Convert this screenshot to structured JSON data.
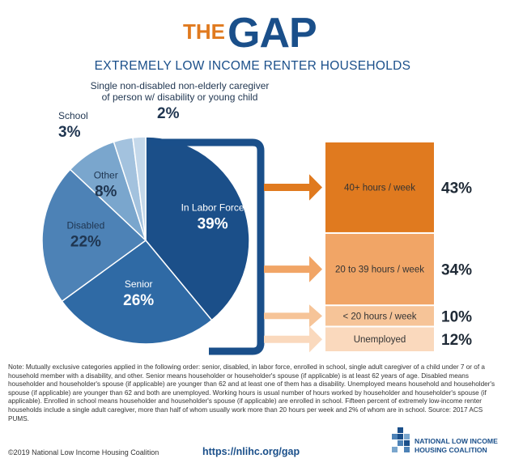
{
  "header": {
    "brand_the": "THE",
    "brand_gap": "GAP",
    "subtitle": "EXTREMELY LOW INCOME RENTER HOUSEHOLDS"
  },
  "colors": {
    "orange": "#e07a1f",
    "navy": "#1a4f8a",
    "text_dark": "#333333"
  },
  "chart_data": [
    {
      "type": "pie",
      "title": "",
      "slices": [
        {
          "label": "In Labor Force",
          "value": 39,
          "display": "39%",
          "color": "#1b4f89"
        },
        {
          "label": "Senior",
          "value": 26,
          "display": "26%",
          "color": "#2f6aa5"
        },
        {
          "label": "Disabled",
          "value": 22,
          "display": "22%",
          "color": "#4d82b6"
        },
        {
          "label": "Other",
          "value": 8,
          "display": "8%",
          "color": "#7aa6cd"
        },
        {
          "label": "School",
          "value": 3,
          "display": "3%",
          "color": "#a3c2de"
        },
        {
          "label": "Single non-disabled non-elderly caregiver of person w/ disability or young child",
          "label_lines": [
            "Single non-disabled non-elderly caregiver",
            "of person w/ disability or young child"
          ],
          "value": 2,
          "display": "2%",
          "color": "#c4d8ea"
        }
      ]
    },
    {
      "type": "bar",
      "title": "",
      "orientation": "stacked-vertical",
      "categories": [
        "40+ hours / week",
        "20 to 39 hours / week",
        "< 20 hours / week",
        "Unemployed"
      ],
      "values": [
        43,
        34,
        10,
        12
      ],
      "display": [
        "43%",
        "34%",
        "10%",
        "12%"
      ],
      "colors": [
        "#e07a1f",
        "#f1a566",
        "#f6c498",
        "#fad9bd"
      ]
    }
  ],
  "note": "Note: Mutually exclusive categories applied in the following order: senior, disabled, in labor force, enrolled in school, single adult caregiver of a child under 7 or of a household member with a disability, and other. Senior means householder or householder's spouse (if applicable) is at least 62 years of age. Disabled means householder and householder's spouse (if applicable) are younger than 62 and at least one of them has a disability. Unemployed means household and householder's spouse (if applicable) are younger than 62 and both are unemployed. Working hours is usual number of hours worked by householder and householder's spouse (if applicable). Enrolled in school means householder and householder's spouse (if applicable) are enrolled in school. Fifteen percent of extremely low-income renter households include a single adult caregiver, more than half of whom usually work more than 20 hours per week and 2% of whom are in school. Source: 2017 ACS PUMS.",
  "footer": {
    "copyright": "©2019 National Low Income Housing Coalition",
    "url": "https://nlihc.org/gap",
    "logo_line1": "NATIONAL LOW INCOME",
    "logo_line2": "HOUSING COALITION"
  }
}
